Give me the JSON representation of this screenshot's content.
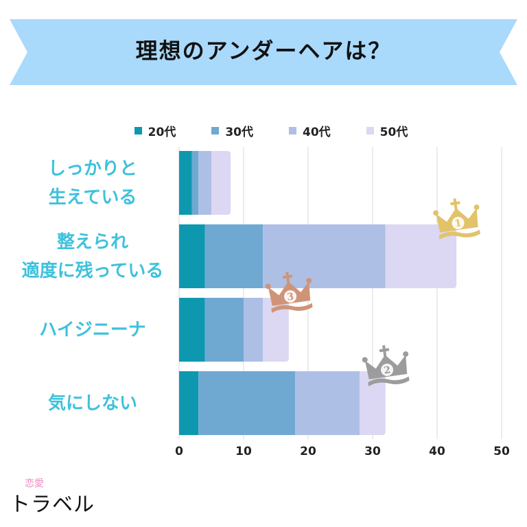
{
  "title": "理想のアンダーヘアは？",
  "logo": {
    "small": "恋愛",
    "main": "トラベル"
  },
  "chart_data": {
    "type": "bar",
    "orientation": "horizontal",
    "stacked": true,
    "categories": [
      [
        "しっかりと",
        "生えている"
      ],
      [
        "整えられ",
        "適度に残っている"
      ],
      [
        "ハイジニーナ"
      ],
      [
        "気にしない"
      ]
    ],
    "series": [
      {
        "name": "20代",
        "color": "#0e98b0",
        "values": [
          2,
          4,
          4,
          3
        ]
      },
      {
        "name": "30代",
        "color": "#6fa9d2",
        "values": [
          1,
          9,
          6,
          15
        ]
      },
      {
        "name": "40代",
        "color": "#aebfe6",
        "values": [
          2,
          19,
          3,
          10
        ]
      },
      {
        "name": "50代",
        "color": "#dcd7f2",
        "values": [
          3,
          11,
          4,
          4
        ]
      }
    ],
    "xlim": [
      0,
      50
    ],
    "xticks": [
      "0",
      "10",
      "20",
      "30",
      "40",
      "50"
    ],
    "grid": true,
    "legend_position": "top",
    "rank_badges": [
      {
        "category_index": 1,
        "rank": "1",
        "color": "#e2c36a"
      },
      {
        "category_index": 3,
        "rank": "2",
        "color": "#9c9c9c"
      },
      {
        "category_index": 2,
        "rank": "3",
        "color": "#cf9478"
      }
    ]
  },
  "colors": {
    "banner": "#a9d9fb",
    "category_label": "#3ec1dc"
  }
}
